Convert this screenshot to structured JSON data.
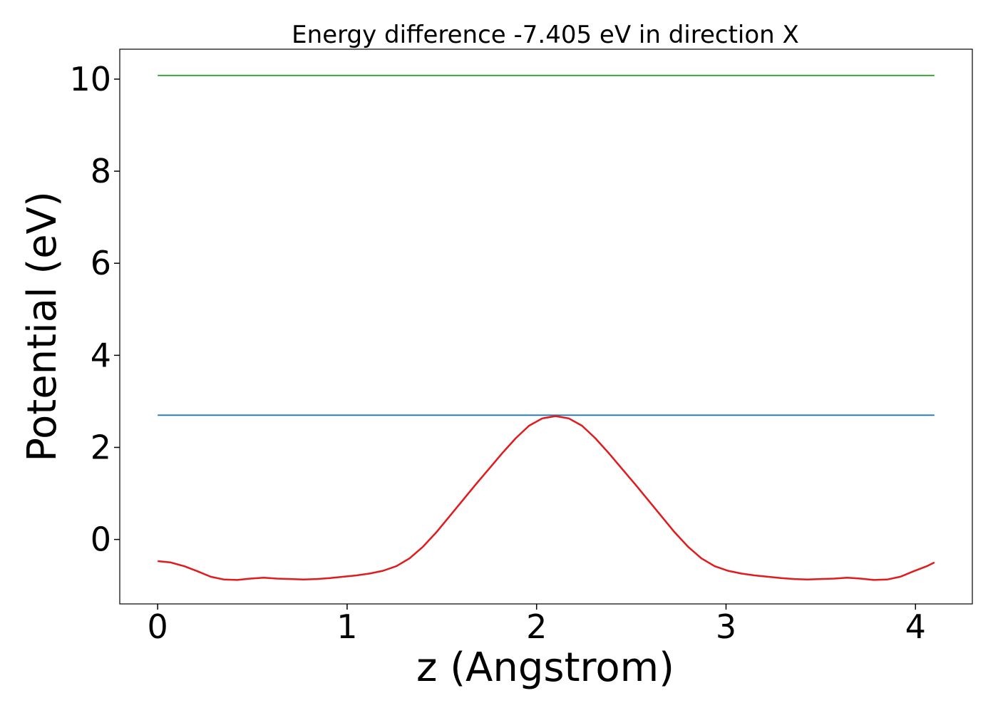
{
  "chart_data": {
    "type": "line",
    "title": "Energy difference -7.405 eV in direction X",
    "xlabel": "z (Angstrom)",
    "ylabel": "Potential (eV)",
    "xlim": [
      -0.2,
      4.3
    ],
    "ylim": [
      -1.4,
      10.65
    ],
    "xticks": [
      0,
      1,
      2,
      3,
      4
    ],
    "yticks": [
      0,
      2,
      4,
      6,
      8,
      10
    ],
    "grid": false,
    "series": [
      {
        "color": "#2ca02c",
        "x": [
          0.0,
          4.1
        ],
        "y": [
          10.08,
          10.08
        ]
      },
      {
        "color": "#1f77b4",
        "x": [
          0.0,
          4.1
        ],
        "y": [
          2.7,
          2.7
        ]
      },
      {
        "color": "#e31a1c",
        "x": [
          0.0,
          0.07,
          0.14,
          0.21,
          0.28,
          0.35,
          0.42,
          0.49,
          0.56,
          0.63,
          0.7,
          0.77,
          0.84,
          0.91,
          0.98,
          1.05,
          1.12,
          1.19,
          1.26,
          1.33,
          1.4,
          1.47,
          1.54,
          1.61,
          1.68,
          1.75,
          1.82,
          1.89,
          1.96,
          2.03,
          2.1,
          2.17,
          2.24,
          2.31,
          2.38,
          2.45,
          2.52,
          2.59,
          2.66,
          2.73,
          2.8,
          2.87,
          2.94,
          3.01,
          3.08,
          3.15,
          3.22,
          3.29,
          3.36,
          3.43,
          3.5,
          3.57,
          3.64,
          3.71,
          3.78,
          3.85,
          3.92,
          3.99,
          4.06,
          4.1
        ],
        "y": [
          -0.47,
          -0.5,
          -0.58,
          -0.69,
          -0.81,
          -0.87,
          -0.88,
          -0.85,
          -0.83,
          -0.85,
          -0.86,
          -0.87,
          -0.86,
          -0.84,
          -0.81,
          -0.78,
          -0.74,
          -0.68,
          -0.58,
          -0.41,
          -0.16,
          0.15,
          0.5,
          0.85,
          1.2,
          1.54,
          1.88,
          2.2,
          2.47,
          2.63,
          2.68,
          2.63,
          2.47,
          2.2,
          1.88,
          1.54,
          1.2,
          0.85,
          0.5,
          0.15,
          -0.16,
          -0.41,
          -0.58,
          -0.68,
          -0.74,
          -0.78,
          -0.81,
          -0.84,
          -0.86,
          -0.87,
          -0.86,
          -0.85,
          -0.83,
          -0.85,
          -0.88,
          -0.87,
          -0.81,
          -0.69,
          -0.58,
          -0.5
        ]
      }
    ]
  }
}
